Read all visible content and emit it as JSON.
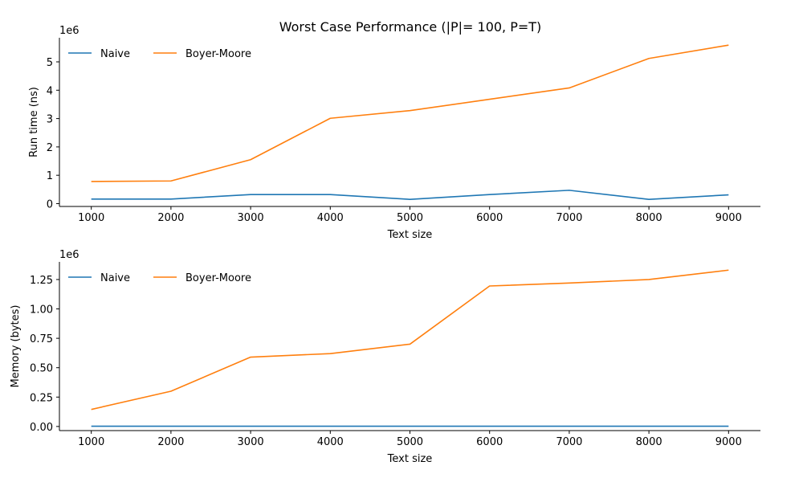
{
  "figure": {
    "title": "Worst Case Performance (|P|= 100, P=T)"
  },
  "chart_data": [
    {
      "type": "line",
      "xlabel": "Text size",
      "ylabel": "Run time (ns)",
      "y_offset_label": "1e6",
      "x": [
        1000,
        2000,
        3000,
        4000,
        5000,
        6000,
        7000,
        8000,
        9000
      ],
      "xticks": [
        1000,
        2000,
        3000,
        4000,
        5000,
        6000,
        7000,
        8000,
        9000
      ],
      "xlim": [
        600,
        9400
      ],
      "yticks": [
        0,
        1,
        2,
        3,
        4,
        5
      ],
      "ytick_labels": [
        "0",
        "1",
        "2",
        "3",
        "4",
        "5"
      ],
      "ylim": [
        -0.1,
        5.85
      ],
      "grid": false,
      "legend_position": "top-left",
      "series": [
        {
          "name": "Naive",
          "color": "#1f77b4",
          "values": [
            0.16,
            0.16,
            0.32,
            0.32,
            0.15,
            0.32,
            0.47,
            0.15,
            0.31
          ]
        },
        {
          "name": "Boyer-Moore",
          "color": "#ff7f0e",
          "values": [
            0.78,
            0.8,
            1.55,
            3.01,
            3.28,
            3.68,
            4.08,
            5.12,
            5.59
          ]
        }
      ]
    },
    {
      "type": "line",
      "xlabel": "Text size",
      "ylabel": "Memory (bytes)",
      "y_offset_label": "1e6",
      "x": [
        1000,
        2000,
        3000,
        4000,
        5000,
        6000,
        7000,
        8000,
        9000
      ],
      "xticks": [
        1000,
        2000,
        3000,
        4000,
        5000,
        6000,
        7000,
        8000,
        9000
      ],
      "xlim": [
        600,
        9400
      ],
      "yticks": [
        0,
        0.25,
        0.5,
        0.75,
        1.0,
        1.25
      ],
      "ytick_labels": [
        "0.00",
        "0.25",
        "0.50",
        "0.75",
        "1.00",
        "1.25"
      ],
      "ylim": [
        -0.035,
        1.4
      ],
      "grid": false,
      "legend_position": "top-left",
      "series": [
        {
          "name": "Naive",
          "color": "#1f77b4",
          "values": [
            0.002,
            0.002,
            0.002,
            0.002,
            0.002,
            0.002,
            0.002,
            0.002,
            0.002
          ]
        },
        {
          "name": "Boyer-Moore",
          "color": "#ff7f0e",
          "values": [
            0.145,
            0.3,
            0.59,
            0.62,
            0.7,
            1.195,
            1.22,
            1.25,
            1.33
          ]
        }
      ]
    }
  ]
}
